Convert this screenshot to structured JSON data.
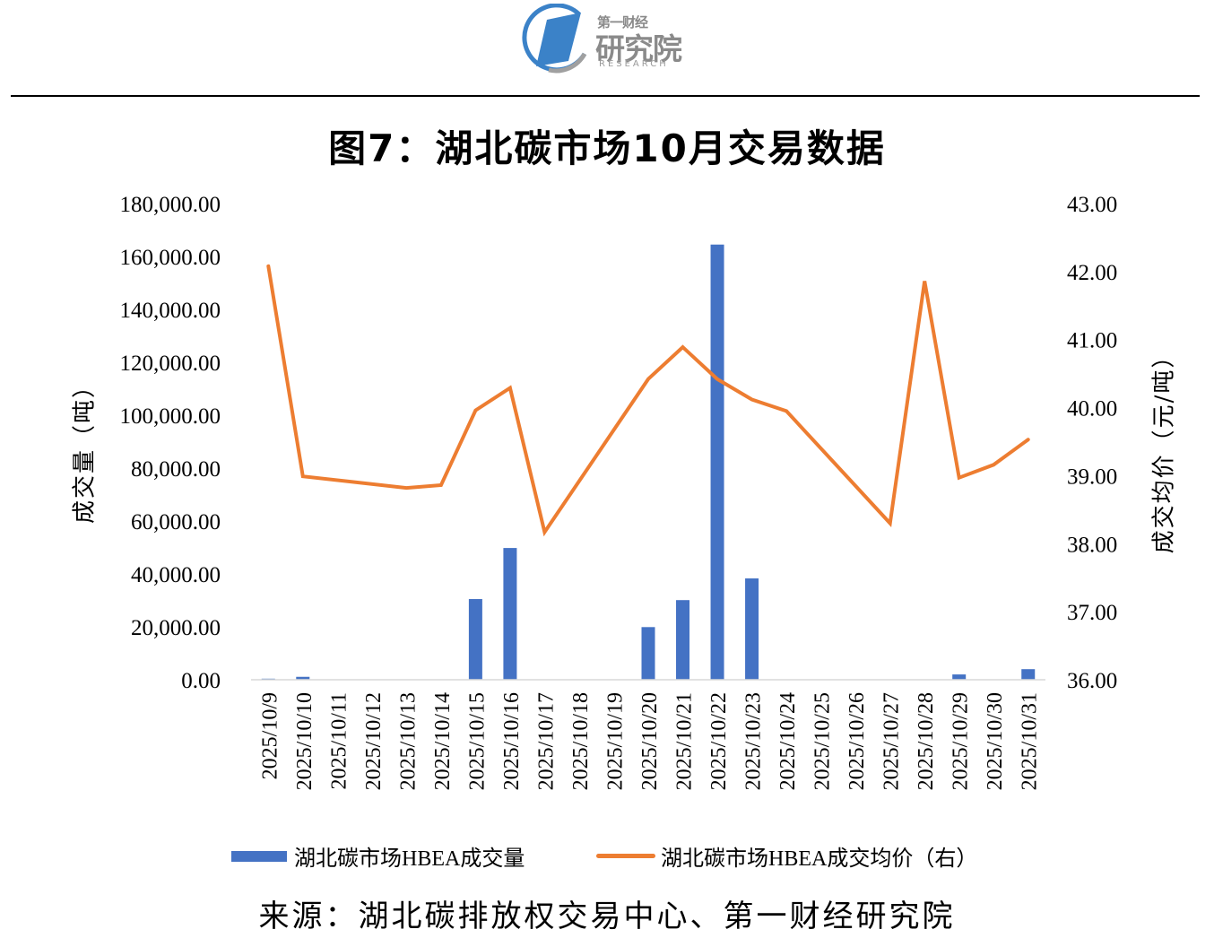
{
  "header": {
    "logo": {
      "icon": "research-institute-logo-icon",
      "line1": "第一财经",
      "line2": "研究院",
      "line3": "RESEARCH",
      "colors": {
        "blue": "#3B82C8",
        "gray": "#8A8A8A"
      }
    }
  },
  "title": "图7：湖北碳市场10月交易数据",
  "legend": {
    "bar_label": "湖北碳市场HBEA成交量",
    "line_label": "湖北碳市场HBEA成交均价（右）"
  },
  "source": "来源：湖北碳排放权交易中心、第一财经研究院",
  "colors": {
    "bar": "#4472C4",
    "line": "#ED7D31",
    "axis": "#D9D9D9"
  },
  "chart_data": {
    "type": "bar+line",
    "title": "图7：湖北碳市场10月交易数据",
    "categories": [
      "2025/10/9",
      "2025/10/10",
      "2025/10/11",
      "2025/10/12",
      "2025/10/13",
      "2025/10/14",
      "2025/10/15",
      "2025/10/16",
      "2025/10/17",
      "2025/10/18",
      "2025/10/19",
      "2025/10/20",
      "2025/10/21",
      "2025/10/22",
      "2025/10/23",
      "2025/10/24",
      "2025/10/25",
      "2025/10/26",
      "2025/10/27",
      "2025/10/28",
      "2025/10/29",
      "2025/10/30",
      "2025/10/31"
    ],
    "series": [
      {
        "name": "湖北碳市场HBEA成交量",
        "type": "bar",
        "axis": "left",
        "values": [
          400,
          1100,
          null,
          null,
          null,
          null,
          30500,
          49800,
          null,
          null,
          null,
          19900,
          30100,
          164500,
          38300,
          null,
          null,
          null,
          null,
          null,
          2000,
          null,
          4000
        ]
      },
      {
        "name": "湖北碳市场HBEA成交均价（右）",
        "type": "line",
        "axis": "right",
        "values": [
          42.08,
          38.99,
          null,
          null,
          38.82,
          38.86,
          39.96,
          40.29,
          38.17,
          null,
          null,
          40.42,
          40.89,
          40.42,
          40.12,
          39.95,
          null,
          null,
          38.3,
          41.86,
          38.97,
          39.16,
          39.53
        ]
      }
    ],
    "xlabel": "",
    "ylabel": "成交量（吨）",
    "ylabel_right": "成交均价（元/吨）",
    "ylim": [
      0,
      180000
    ],
    "ylim_right": [
      36,
      43
    ],
    "yticks": [
      "180,000.00",
      "160,000.00",
      "140,000.00",
      "120,000.00",
      "100,000.00",
      "80,000.00",
      "60,000.00",
      "40,000.00",
      "20,000.00",
      "0.00"
    ],
    "yticks_right": [
      "43.00",
      "42.00",
      "41.00",
      "40.00",
      "39.00",
      "38.00",
      "37.00",
      "36.00"
    ],
    "grid": false,
    "legend_position": "bottom",
    "line_gaps_connected": true
  }
}
